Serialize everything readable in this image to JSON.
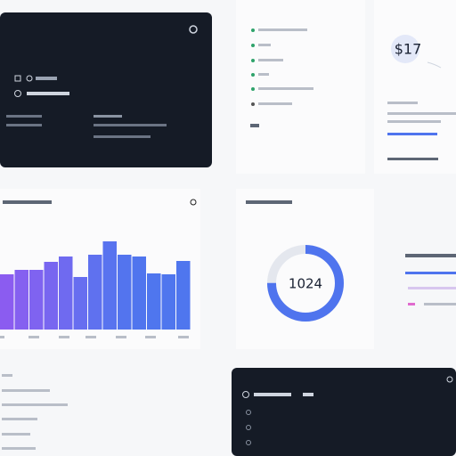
{
  "summary": {
    "amount": "$17"
  },
  "activity_chart": {
    "type": "bar",
    "values": [
      62,
      67,
      67,
      76,
      82,
      59,
      84,
      99,
      84,
      82,
      63,
      62,
      77
    ],
    "colors": [
      "#8b5cf0",
      "#8560f0",
      "#7f63f0",
      "#7866f0",
      "#6f6af0",
      "#676ef0",
      "#5f71ef",
      "#5873ef",
      "#5374ee",
      "#5075ee",
      "#4f76ee",
      "#4f76ee",
      "#4f76ee"
    ],
    "ylim": [
      0,
      105
    ]
  },
  "donut": {
    "type": "pie",
    "label": "1024",
    "value": 75,
    "ylim": [
      0,
      100
    ],
    "color": "#4f74ee",
    "track": "#e4e7ee"
  }
}
